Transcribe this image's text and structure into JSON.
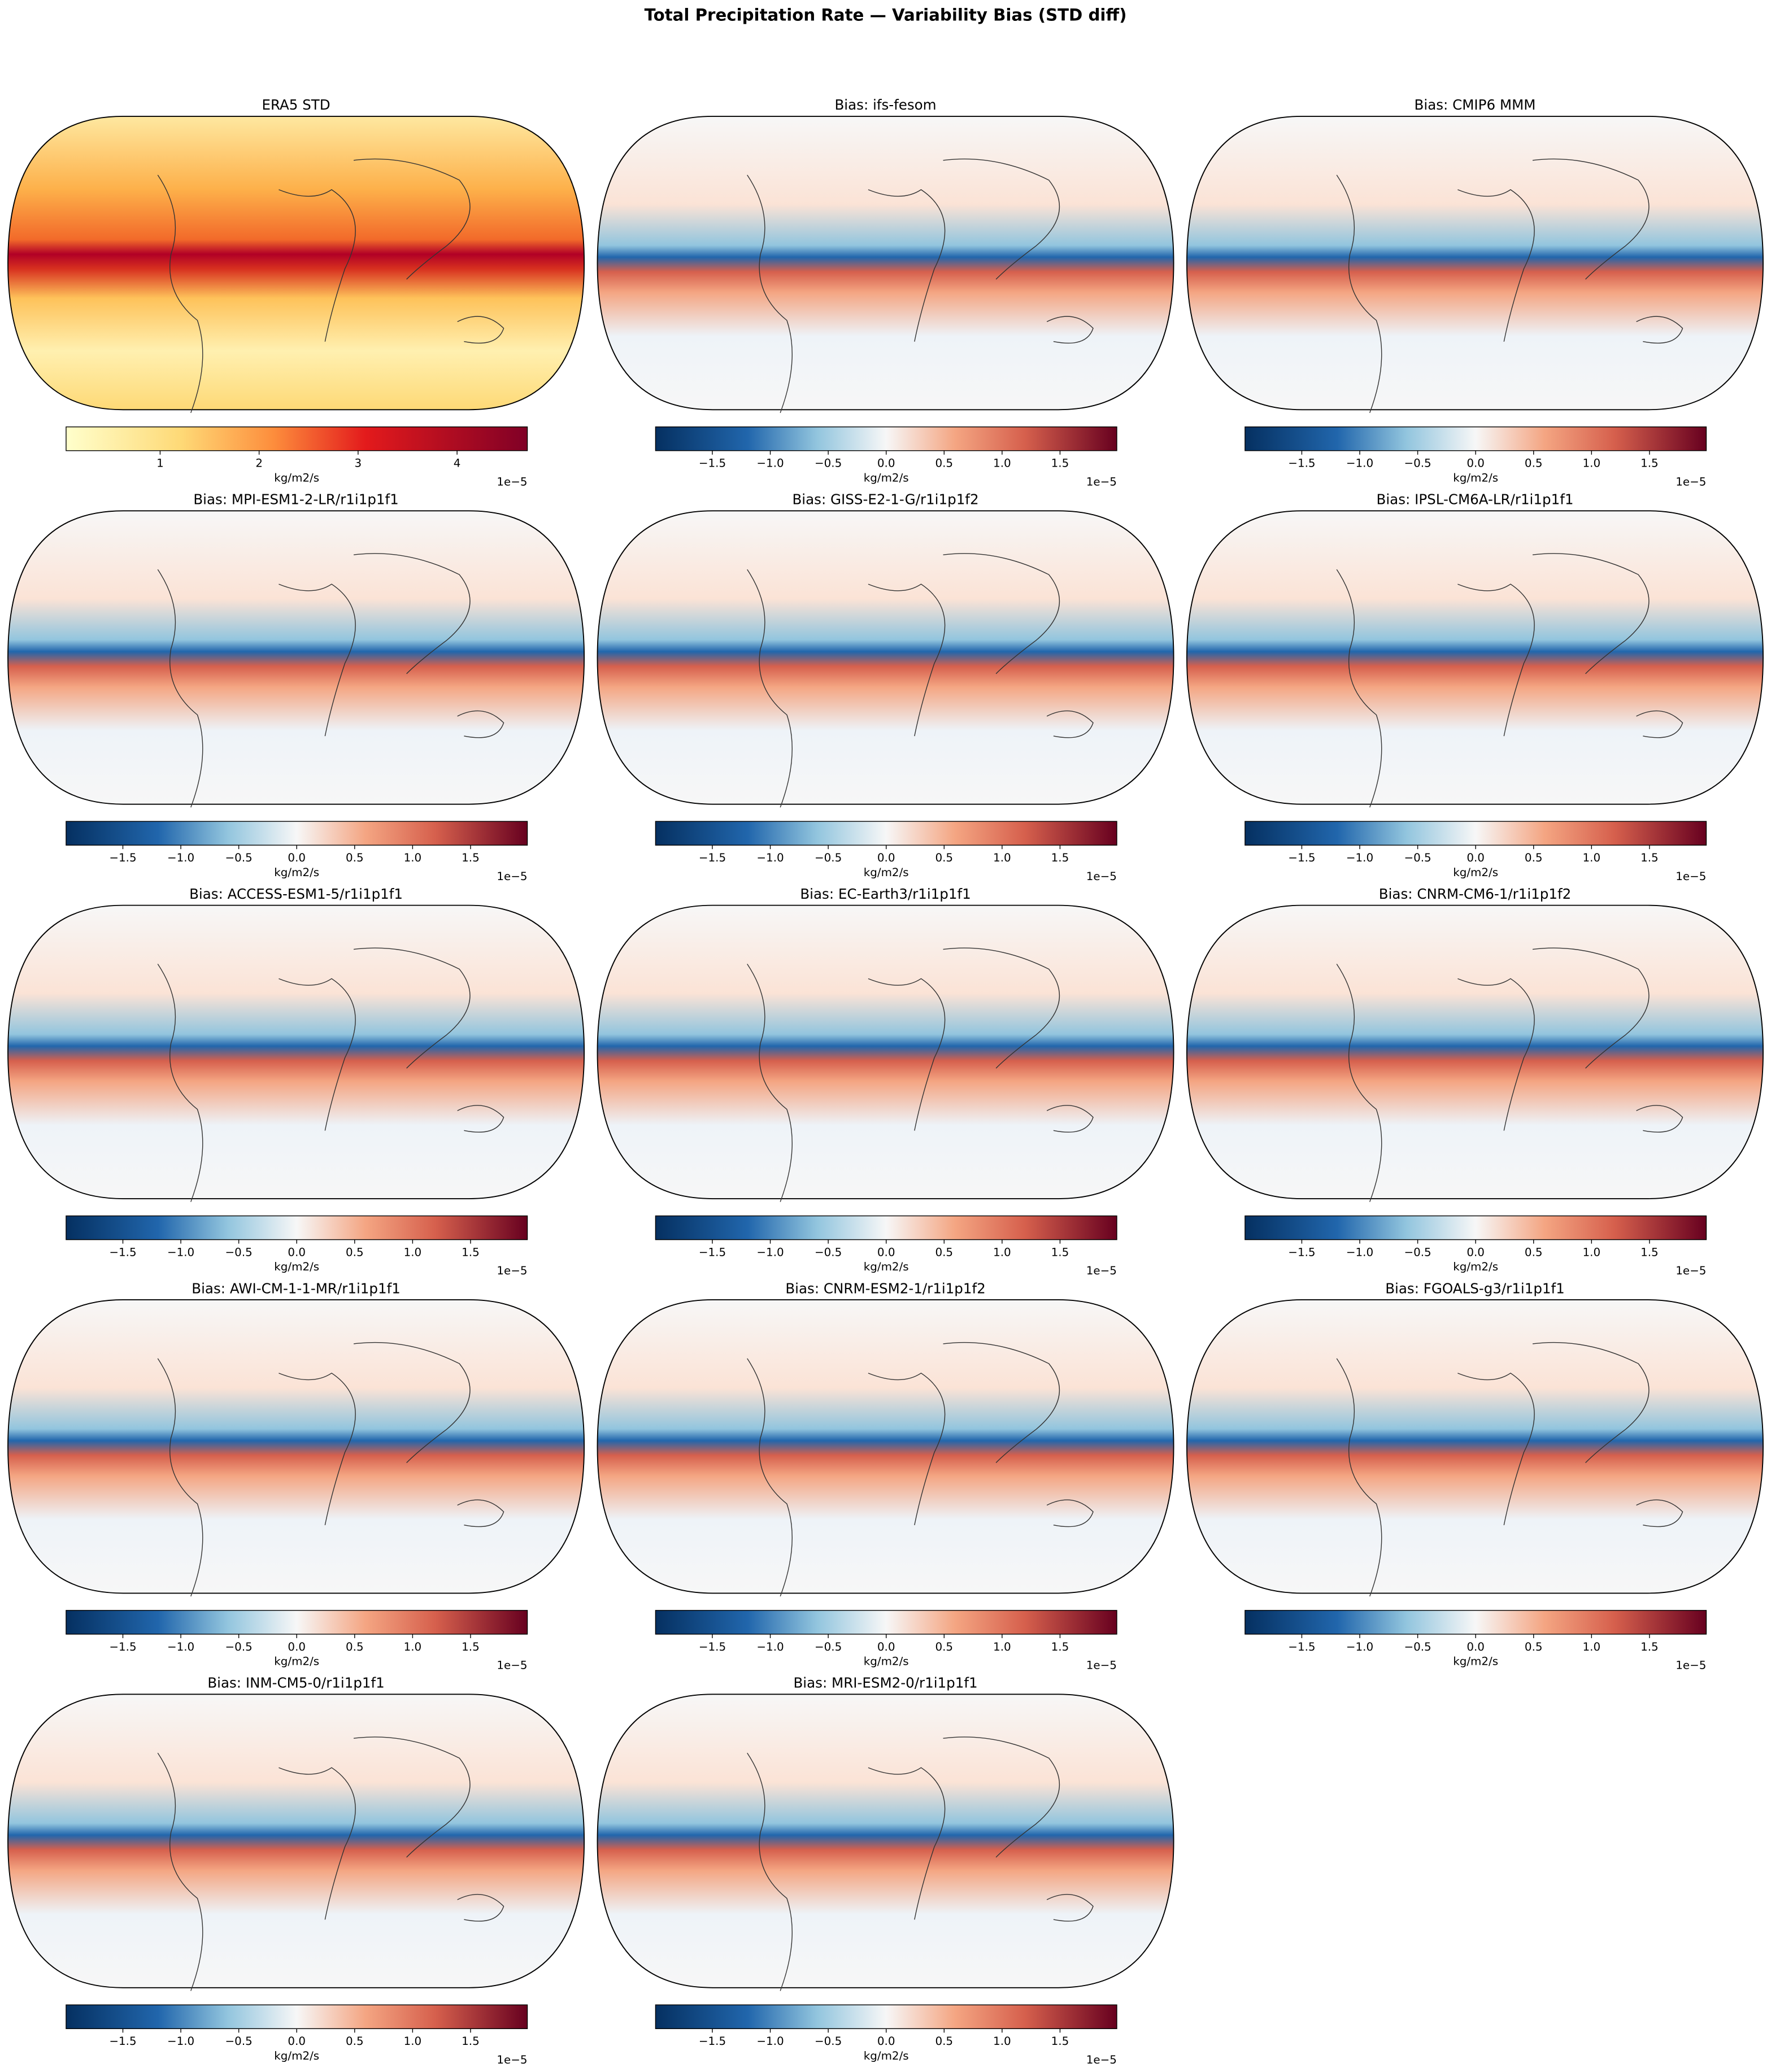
{
  "chart_data": {
    "type": "map-grid",
    "title": "Total Precipitation Rate — Variability Bias (STD diff)",
    "panels": [
      {
        "title": "ERA5 STD",
        "colorbar": {
          "cmap": "YlOrRd",
          "clim": [
            0.05,
            4.71
          ],
          "ticks": [
            1,
            2,
            3,
            4
          ],
          "label": "kg/m2/s",
          "offset": "1e−5"
        }
      },
      {
        "title": "Bias: ifs-fesom",
        "colorbar": {
          "cmap": "RdBu_r",
          "clim": [
            -1.99,
            1.99
          ],
          "ticks": [
            {
              "value": -1.5,
              "label": "−1.5"
            },
            {
              "value": -1,
              "label": "−1.0"
            },
            {
              "value": -0.5,
              "label": "−0.5"
            },
            {
              "value": 0,
              "label": "0.0"
            },
            0.5,
            {
              "value": 1,
              "label": "1.0"
            },
            1.5
          ],
          "label": "kg/m2/s",
          "offset": "1e−5"
        }
      },
      {
        "title": "Bias: CMIP6 MMM",
        "colorbar": {
          "cmap": "RdBu_r",
          "clim": [
            -1.99,
            1.99
          ],
          "ticks": [
            {
              "value": -1.5,
              "label": "−1.5"
            },
            {
              "value": -1,
              "label": "−1.0"
            },
            {
              "value": -0.5,
              "label": "−0.5"
            },
            {
              "value": 0,
              "label": "0.0"
            },
            0.5,
            {
              "value": 1,
              "label": "1.0"
            },
            1.5
          ],
          "label": "kg/m2/s",
          "offset": "1e−5"
        }
      },
      {
        "title": "Bias: MPI-ESM1-2-LR/r1i1p1f1",
        "colorbar": {
          "cmap": "RdBu_r",
          "clim": [
            -1.99,
            1.99
          ],
          "ticks": [
            {
              "value": -1.5,
              "label": "−1.5"
            },
            {
              "value": -1,
              "label": "−1.0"
            },
            {
              "value": -0.5,
              "label": "−0.5"
            },
            {
              "value": 0,
              "label": "0.0"
            },
            0.5,
            {
              "value": 1,
              "label": "1.0"
            },
            1.5
          ],
          "label": "kg/m2/s",
          "offset": "1e−5"
        }
      },
      {
        "title": "Bias: GISS-E2-1-G/r1i1p1f2",
        "colorbar": {
          "cmap": "RdBu_r",
          "clim": [
            -1.99,
            1.99
          ],
          "ticks": [
            {
              "value": -1.5,
              "label": "−1.5"
            },
            {
              "value": -1,
              "label": "−1.0"
            },
            {
              "value": -0.5,
              "label": "−0.5"
            },
            {
              "value": 0,
              "label": "0.0"
            },
            0.5,
            {
              "value": 1,
              "label": "1.0"
            },
            1.5
          ],
          "label": "kg/m2/s",
          "offset": "1e−5"
        }
      },
      {
        "title": "Bias: IPSL-CM6A-LR/r1i1p1f1",
        "colorbar": {
          "cmap": "RdBu_r",
          "clim": [
            -1.99,
            1.99
          ],
          "ticks": [
            {
              "value": -1.5,
              "label": "−1.5"
            },
            {
              "value": -1,
              "label": "−1.0"
            },
            {
              "value": -0.5,
              "label": "−0.5"
            },
            {
              "value": 0,
              "label": "0.0"
            },
            0.5,
            {
              "value": 1,
              "label": "1.0"
            },
            1.5
          ],
          "label": "kg/m2/s",
          "offset": "1e−5"
        }
      },
      {
        "title": "Bias: ACCESS-ESM1-5/r1i1p1f1",
        "colorbar": {
          "cmap": "RdBu_r",
          "clim": [
            -1.99,
            1.99
          ],
          "ticks": [
            {
              "value": -1.5,
              "label": "−1.5"
            },
            {
              "value": -1,
              "label": "−1.0"
            },
            {
              "value": -0.5,
              "label": "−0.5"
            },
            {
              "value": 0,
              "label": "0.0"
            },
            0.5,
            {
              "value": 1,
              "label": "1.0"
            },
            1.5
          ],
          "label": "kg/m2/s",
          "offset": "1e−5"
        }
      },
      {
        "title": "Bias: EC-Earth3/r1i1p1f1",
        "colorbar": {
          "cmap": "RdBu_r",
          "clim": [
            -1.99,
            1.99
          ],
          "ticks": [
            {
              "value": -1.5,
              "label": "−1.5"
            },
            {
              "value": -1,
              "label": "−1.0"
            },
            {
              "value": -0.5,
              "label": "−0.5"
            },
            {
              "value": 0,
              "label": "0.0"
            },
            0.5,
            {
              "value": 1,
              "label": "1.0"
            },
            1.5
          ],
          "label": "kg/m2/s",
          "offset": "1e−5"
        }
      },
      {
        "title": "Bias: CNRM-CM6-1/r1i1p1f2",
        "colorbar": {
          "cmap": "RdBu_r",
          "clim": [
            -1.99,
            1.99
          ],
          "ticks": [
            {
              "value": -1.5,
              "label": "−1.5"
            },
            {
              "value": -1,
              "label": "−1.0"
            },
            {
              "value": -0.5,
              "label": "−0.5"
            },
            {
              "value": 0,
              "label": "0.0"
            },
            0.5,
            {
              "value": 1,
              "label": "1.0"
            },
            1.5
          ],
          "label": "kg/m2/s",
          "offset": "1e−5"
        }
      },
      {
        "title": "Bias: AWI-CM-1-1-MR/r1i1p1f1",
        "colorbar": {
          "cmap": "RdBu_r",
          "clim": [
            -1.99,
            1.99
          ],
          "ticks": [
            {
              "value": -1.5,
              "label": "−1.5"
            },
            {
              "value": -1,
              "label": "−1.0"
            },
            {
              "value": -0.5,
              "label": "−0.5"
            },
            {
              "value": 0,
              "label": "0.0"
            },
            0.5,
            {
              "value": 1,
              "label": "1.0"
            },
            1.5
          ],
          "label": "kg/m2/s",
          "offset": "1e−5"
        }
      },
      {
        "title": "Bias: CNRM-ESM2-1/r1i1p1f2",
        "colorbar": {
          "cmap": "RdBu_r",
          "clim": [
            -1.99,
            1.99
          ],
          "ticks": [
            {
              "value": -1.5,
              "label": "−1.5"
            },
            {
              "value": -1,
              "label": "−1.0"
            },
            {
              "value": -0.5,
              "label": "−0.5"
            },
            {
              "value": 0,
              "label": "0.0"
            },
            0.5,
            {
              "value": 1,
              "label": "1.0"
            },
            1.5
          ],
          "label": "kg/m2/s",
          "offset": "1e−5"
        }
      },
      {
        "title": "Bias: FGOALS-g3/r1i1p1f1",
        "colorbar": {
          "cmap": "RdBu_r",
          "clim": [
            -1.99,
            1.99
          ],
          "ticks": [
            {
              "value": -1.5,
              "label": "−1.5"
            },
            {
              "value": -1,
              "label": "−1.0"
            },
            {
              "value": -0.5,
              "label": "−0.5"
            },
            {
              "value": 0,
              "label": "0.0"
            },
            0.5,
            {
              "value": 1,
              "label": "1.0"
            },
            1.5
          ],
          "label": "kg/m2/s",
          "offset": "1e−5"
        }
      },
      {
        "title": "Bias: INM-CM5-0/r1i1p1f1",
        "colorbar": {
          "cmap": "RdBu_r",
          "clim": [
            -1.99,
            1.99
          ],
          "ticks": [
            {
              "value": -1.5,
              "label": "−1.5"
            },
            {
              "value": -1,
              "label": "−1.0"
            },
            {
              "value": -0.5,
              "label": "−0.5"
            },
            {
              "value": 0,
              "label": "0.0"
            },
            0.5,
            {
              "value": 1,
              "label": "1.0"
            },
            1.5
          ],
          "label": "kg/m2/s",
          "offset": "1e−5"
        }
      },
      {
        "title": "Bias: MRI-ESM2-0/r1i1p1f1",
        "colorbar": {
          "cmap": "RdBu_r",
          "clim": [
            -1.99,
            1.99
          ],
          "ticks": [
            {
              "value": -1.5,
              "label": "−1.5"
            },
            {
              "value": -1,
              "label": "−1.0"
            },
            {
              "value": -0.5,
              "label": "−0.5"
            },
            {
              "value": 0,
              "label": "0.0"
            },
            0.5,
            {
              "value": 1,
              "label": "1.0"
            },
            1.5
          ],
          "label": "kg/m2/s",
          "offset": "1e−5"
        }
      }
    ]
  }
}
